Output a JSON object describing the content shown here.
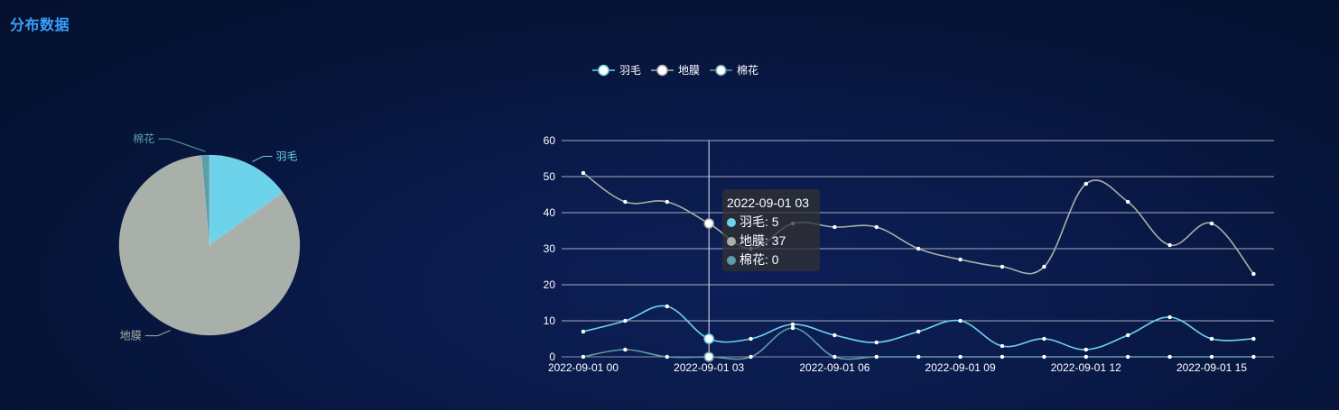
{
  "panel": {
    "title": "分布数据"
  },
  "colors": {
    "feather": "#6dd3ea",
    "film": "#a9b0a9",
    "cotton": "#5e9ea8"
  },
  "chart_data": [
    {
      "type": "pie",
      "slices": [
        {
          "name": "羽毛",
          "value": 105
        },
        {
          "name": "地膜",
          "value": 581
        },
        {
          "name": "棉花",
          "value": 10
        }
      ]
    },
    {
      "type": "line",
      "smooth": true,
      "legend": {
        "position": "top-center",
        "items": [
          "羽毛",
          "地膜",
          "棉花"
        ]
      },
      "x": [
        "2022-09-01 00",
        "2022-09-01 01",
        "2022-09-01 02",
        "2022-09-01 03",
        "2022-09-01 04",
        "2022-09-01 05",
        "2022-09-01 06",
        "2022-09-01 07",
        "2022-09-01 08",
        "2022-09-01 09",
        "2022-09-01 10",
        "2022-09-01 11",
        "2022-09-01 12",
        "2022-09-01 13",
        "2022-09-01 14",
        "2022-09-01 15",
        "2022-09-01 16"
      ],
      "x_tick_labels": [
        "2022-09-01 00",
        "2022-09-01 03",
        "2022-09-01 06",
        "2022-09-01 09",
        "2022-09-01 12",
        "2022-09-01 15"
      ],
      "ylim": [
        0,
        60
      ],
      "y_ticks": [
        0,
        10,
        20,
        30,
        40,
        50,
        60
      ],
      "grid": true,
      "series": [
        {
          "name": "羽毛",
          "values": [
            7,
            10,
            14,
            5,
            5,
            9,
            6,
            4,
            7,
            10,
            3,
            5,
            2,
            6,
            11,
            5,
            5
          ]
        },
        {
          "name": "地膜",
          "values": [
            51,
            43,
            43,
            37,
            30,
            37,
            36,
            36,
            30,
            27,
            25,
            25,
            48,
            43,
            31,
            37,
            23
          ]
        },
        {
          "name": "棉花",
          "values": [
            0,
            2,
            0,
            0,
            0,
            8,
            0,
            0,
            0,
            0,
            0,
            0,
            0,
            0,
            0,
            0,
            0
          ]
        }
      ]
    }
  ],
  "tooltip": {
    "index": 3,
    "title": "2022-09-01 03",
    "rows": [
      {
        "name": "羽毛",
        "value": "5"
      },
      {
        "name": "地膜",
        "value": "37"
      },
      {
        "name": "棉花",
        "value": "0"
      }
    ]
  }
}
